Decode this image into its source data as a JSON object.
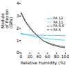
{
  "chart_data": {
    "type": "line",
    "title": "",
    "xlabel": "Relative humidity (%)",
    "ylabel": "Module\nof flexion\n(GPa)",
    "x": [
      0,
      10,
      20,
      30,
      40,
      50,
      60,
      70,
      80,
      90,
      100
    ],
    "series": [
      {
        "name": "PA 12",
        "color": "#55aaff",
        "line_style": "dashed",
        "values": [
          1.55,
          1.5,
          1.47,
          1.45,
          1.44,
          1.43,
          1.42,
          1.42,
          1.41,
          1.41,
          1.4
        ]
      },
      {
        "name": "PA 11",
        "color": "#00ccff",
        "line_style": "dotted",
        "values": [
          1.6,
          1.52,
          1.42,
          1.35,
          1.28,
          1.22,
          1.17,
          1.12,
          1.08,
          1.05,
          1.02
        ]
      },
      {
        "name": "PA 6,6",
        "color": "#666666",
        "line_style": "dashdot",
        "values": [
          3.2,
          2.5,
          2.0,
          1.6,
          1.3,
          1.0,
          0.85,
          0.72,
          0.62,
          0.55,
          0.5
        ]
      },
      {
        "name": "PA 6",
        "color": "#333333",
        "line_style": "dashdot",
        "values": [
          3.3,
          2.6,
          2.1,
          1.65,
          1.3,
          1.0,
          0.8,
          0.65,
          0.55,
          0.47,
          0.42
        ]
      }
    ],
    "xlim": [
      0,
      100
    ],
    "xticks": [
      0,
      20,
      40,
      60,
      80,
      100
    ],
    "ylim": [
      0,
      4
    ],
    "yticks": [
      0,
      1,
      2,
      3,
      4
    ],
    "grid": false,
    "legend": "right"
  }
}
